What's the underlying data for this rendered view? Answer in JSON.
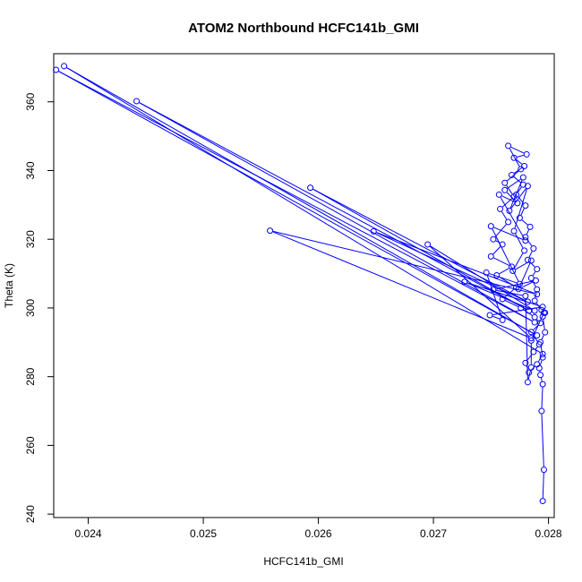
{
  "chart_data": {
    "type": "line",
    "title": "ATOM2 Northbound HCFC141b_GMI",
    "xlabel": "HCFC141b_GMI",
    "ylabel": "Theta (K)",
    "xlim": [
      0.0237,
      0.02805
    ],
    "ylim": [
      239,
      374
    ],
    "xticks": [
      0.024,
      0.025,
      0.026,
      0.027,
      0.028
    ],
    "xtick_labels": [
      "0.024",
      "0.025",
      "0.026",
      "0.027",
      "0.028"
    ],
    "yticks": [
      240,
      260,
      280,
      300,
      320,
      340,
      360
    ],
    "ytick_labels": [
      "240",
      "260",
      "280",
      "300",
      "320",
      "340",
      "360"
    ],
    "grid": false,
    "legend": "none",
    "series_color": "#0000ff",
    "marker": "open-circle",
    "series": [
      {
        "points": [
          [
            0.02795,
            243.8
          ],
          [
            0.02796,
            252.9
          ],
          [
            0.02794,
            270.0
          ],
          [
            0.02795,
            277.8
          ],
          [
            0.02793,
            280.5
          ],
          [
            0.02792,
            282.5
          ],
          [
            0.02795,
            285.6
          ],
          [
            0.02793,
            290.0
          ],
          [
            0.02797,
            292.9
          ],
          [
            0.02795,
            297.5
          ],
          [
            0.02797,
            298.6
          ],
          [
            0.02794,
            299.4
          ],
          [
            0.02788,
            302.1
          ],
          [
            0.0279,
            305.4
          ],
          [
            0.02785,
            308.7
          ],
          [
            0.0279,
            311.3
          ],
          [
            0.02782,
            314.0
          ],
          [
            0.02787,
            317.3
          ],
          [
            0.0278,
            320.6
          ],
          [
            0.02784,
            323.6
          ],
          [
            0.02775,
            326.2
          ],
          [
            0.0278,
            329.8
          ],
          [
            0.02772,
            333.0
          ],
          [
            0.02778,
            335.9
          ],
          [
            0.02768,
            338.7
          ],
          [
            0.02779,
            341.3
          ],
          [
            0.0277,
            343.7
          ],
          [
            0.02781,
            344.7
          ],
          [
            0.02765,
            347.2
          ],
          [
            0.02776,
            340.4
          ],
          [
            0.02762,
            336.4
          ],
          [
            0.0277,
            332.4
          ],
          [
            0.02758,
            328.8
          ],
          [
            0.02765,
            325.0
          ],
          [
            0.02752,
            320.0
          ],
          [
            0.0276,
            318.5
          ],
          [
            0.0275,
            315.0
          ],
          [
            0.02768,
            312.0
          ],
          [
            0.02755,
            309.5
          ],
          [
            0.02772,
            306.0
          ],
          [
            0.0276,
            302.6
          ],
          [
            0.02776,
            300.0
          ],
          [
            0.02788,
            297.3
          ],
          [
            0.02793,
            295.6
          ],
          [
            0.02785,
            293.0
          ],
          [
            0.02792,
            289.4
          ],
          [
            0.02787,
            287.2
          ],
          [
            0.0278,
            284.0
          ],
          [
            0.02783,
            281.2
          ],
          [
            0.0279,
            283.6
          ],
          [
            0.02795,
            286.6
          ],
          [
            0.02379,
            370.4
          ],
          [
            0.0279,
            292.0
          ],
          [
            0.02372,
            369.3
          ],
          [
            0.02788,
            295.8
          ],
          [
            0.02442,
            360.2
          ],
          [
            0.02783,
            299.2
          ],
          [
            0.02593,
            335.0
          ],
          [
            0.02782,
            301.8
          ],
          [
            0.02648,
            322.3
          ],
          [
            0.0279,
            304.0
          ],
          [
            0.02558,
            322.5
          ],
          [
            0.02785,
            291.2
          ],
          [
            0.02695,
            318.5
          ],
          [
            0.02788,
            299.2
          ],
          [
            0.02727,
            307.6
          ],
          [
            0.02795,
            300.3
          ],
          [
            0.02749,
            297.9
          ],
          [
            0.0276,
            296.5
          ],
          [
            0.02746,
            310.3
          ],
          [
            0.02775,
            307.0
          ],
          [
            0.0275,
            323.8
          ],
          [
            0.0278,
            319.6
          ],
          [
            0.02757,
            333.0
          ],
          [
            0.02773,
            330.5
          ],
          [
            0.02762,
            334.3
          ],
          [
            0.02778,
            338.0
          ],
          [
            0.02766,
            328.3
          ],
          [
            0.02782,
            335.5
          ],
          [
            0.0277,
            322.4
          ],
          [
            0.02779,
            316.7
          ],
          [
            0.02769,
            310.8
          ],
          [
            0.02785,
            313.8
          ],
          [
            0.02774,
            305.5
          ],
          [
            0.02789,
            308.0
          ],
          [
            0.02752,
            305.3
          ],
          [
            0.0278,
            303.5
          ],
          [
            0.02782,
            278.4
          ],
          [
            0.02785,
            282.7
          ],
          [
            0.02785,
            290.5
          ],
          [
            0.02796,
            298.6
          ]
        ]
      }
    ]
  }
}
